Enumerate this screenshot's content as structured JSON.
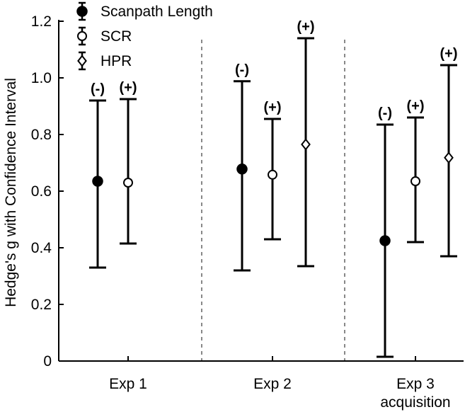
{
  "chart_data": {
    "type": "errorbar",
    "ylabel": "Hedge's g with Confidence Interval",
    "ylim": [
      0,
      1.2
    ],
    "yticks": [
      "0",
      "0.2",
      "0.4",
      "0.6",
      "0.8",
      "1.0",
      "1.2"
    ],
    "groups": [
      {
        "label": "Exp 1",
        "sublabel": ""
      },
      {
        "label": "Exp 2",
        "sublabel": ""
      },
      {
        "label": "Exp 3",
        "sublabel": "acquisition"
      }
    ],
    "legend": [
      {
        "name": "Scanpath Length",
        "marker": "filled-circle"
      },
      {
        "name": "SCR",
        "marker": "open-circle"
      },
      {
        "name": "HPR",
        "marker": "open-diamond"
      }
    ],
    "points": [
      {
        "group": 0,
        "series": "Scanpath Length",
        "g": 0.635,
        "lower": 0.33,
        "upper": 0.92,
        "sign": "(-)"
      },
      {
        "group": 0,
        "series": "SCR",
        "g": 0.63,
        "lower": 0.415,
        "upper": 0.925,
        "sign": "(+)"
      },
      {
        "group": 1,
        "series": "Scanpath Length",
        "g": 0.678,
        "lower": 0.32,
        "upper": 0.988,
        "sign": "(-)"
      },
      {
        "group": 1,
        "series": "SCR",
        "g": 0.658,
        "lower": 0.43,
        "upper": 0.855,
        "sign": "(+)"
      },
      {
        "group": 1,
        "series": "HPR",
        "g": 0.765,
        "lower": 0.335,
        "upper": 1.14,
        "sign": "(+)"
      },
      {
        "group": 2,
        "series": "Scanpath Length",
        "g": 0.425,
        "lower": 0.015,
        "upper": 0.835,
        "sign": "(-)"
      },
      {
        "group": 2,
        "series": "SCR",
        "g": 0.635,
        "lower": 0.42,
        "upper": 0.86,
        "sign": "(+)"
      },
      {
        "group": 2,
        "series": "HPR",
        "g": 0.718,
        "lower": 0.37,
        "upper": 1.045,
        "sign": "(+)"
      }
    ]
  }
}
